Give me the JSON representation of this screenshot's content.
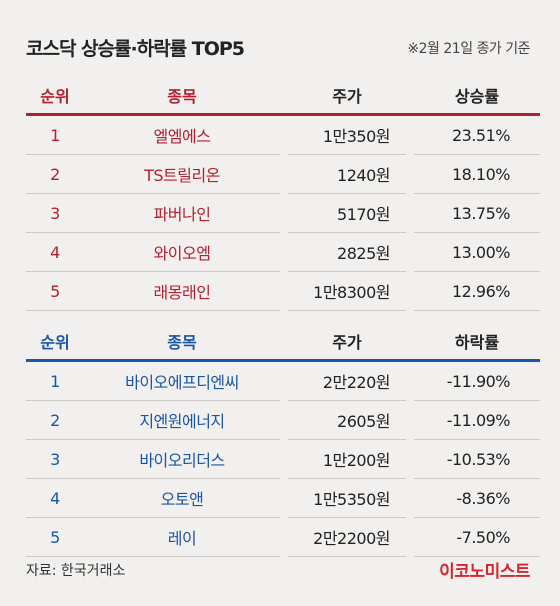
{
  "title": "코스닥 상승률·하락률 TOP5",
  "note": "※2월 21일 종가 기준",
  "up_headers": {
    "rank": "순위",
    "name": "종목",
    "price": "주가",
    "rate": "상승률"
  },
  "down_headers": {
    "rank": "순위",
    "name": "종목",
    "price": "주가",
    "rate": "하락률"
  },
  "source": "자료: 한국거래소",
  "logo": "이코노미스트",
  "colors": {
    "up": "#b52030",
    "down": "#1a56a6",
    "logo": "#d7252e",
    "background": "#f2f0ee"
  },
  "chart_data": [
    {
      "type": "table",
      "columns": [
        "순위",
        "종목",
        "주가",
        "상승률"
      ],
      "rows": [
        [
          "1",
          "엘엠에스",
          "1만350원",
          "23.51%"
        ],
        [
          "2",
          "TS트릴리온",
          "1240원",
          "18.10%"
        ],
        [
          "3",
          "파버나인",
          "5170원",
          "13.75%"
        ],
        [
          "4",
          "와이오엠",
          "2825원",
          "13.00%"
        ],
        [
          "5",
          "래몽래인",
          "1만8300원",
          "12.96%"
        ]
      ]
    },
    {
      "type": "table",
      "columns": [
        "순위",
        "종목",
        "주가",
        "하락률"
      ],
      "rows": [
        [
          "1",
          "바이오에프디엔씨",
          "2만220원",
          "-11.90%"
        ],
        [
          "2",
          "지엔원에너지",
          "2605원",
          "-11.09%"
        ],
        [
          "3",
          "바이오리더스",
          "1만200원",
          "-10.53%"
        ],
        [
          "4",
          "오토앤",
          "1만5350원",
          "-8.36%"
        ],
        [
          "5",
          "레이",
          "2만2200원",
          "-7.50%"
        ]
      ]
    }
  ]
}
